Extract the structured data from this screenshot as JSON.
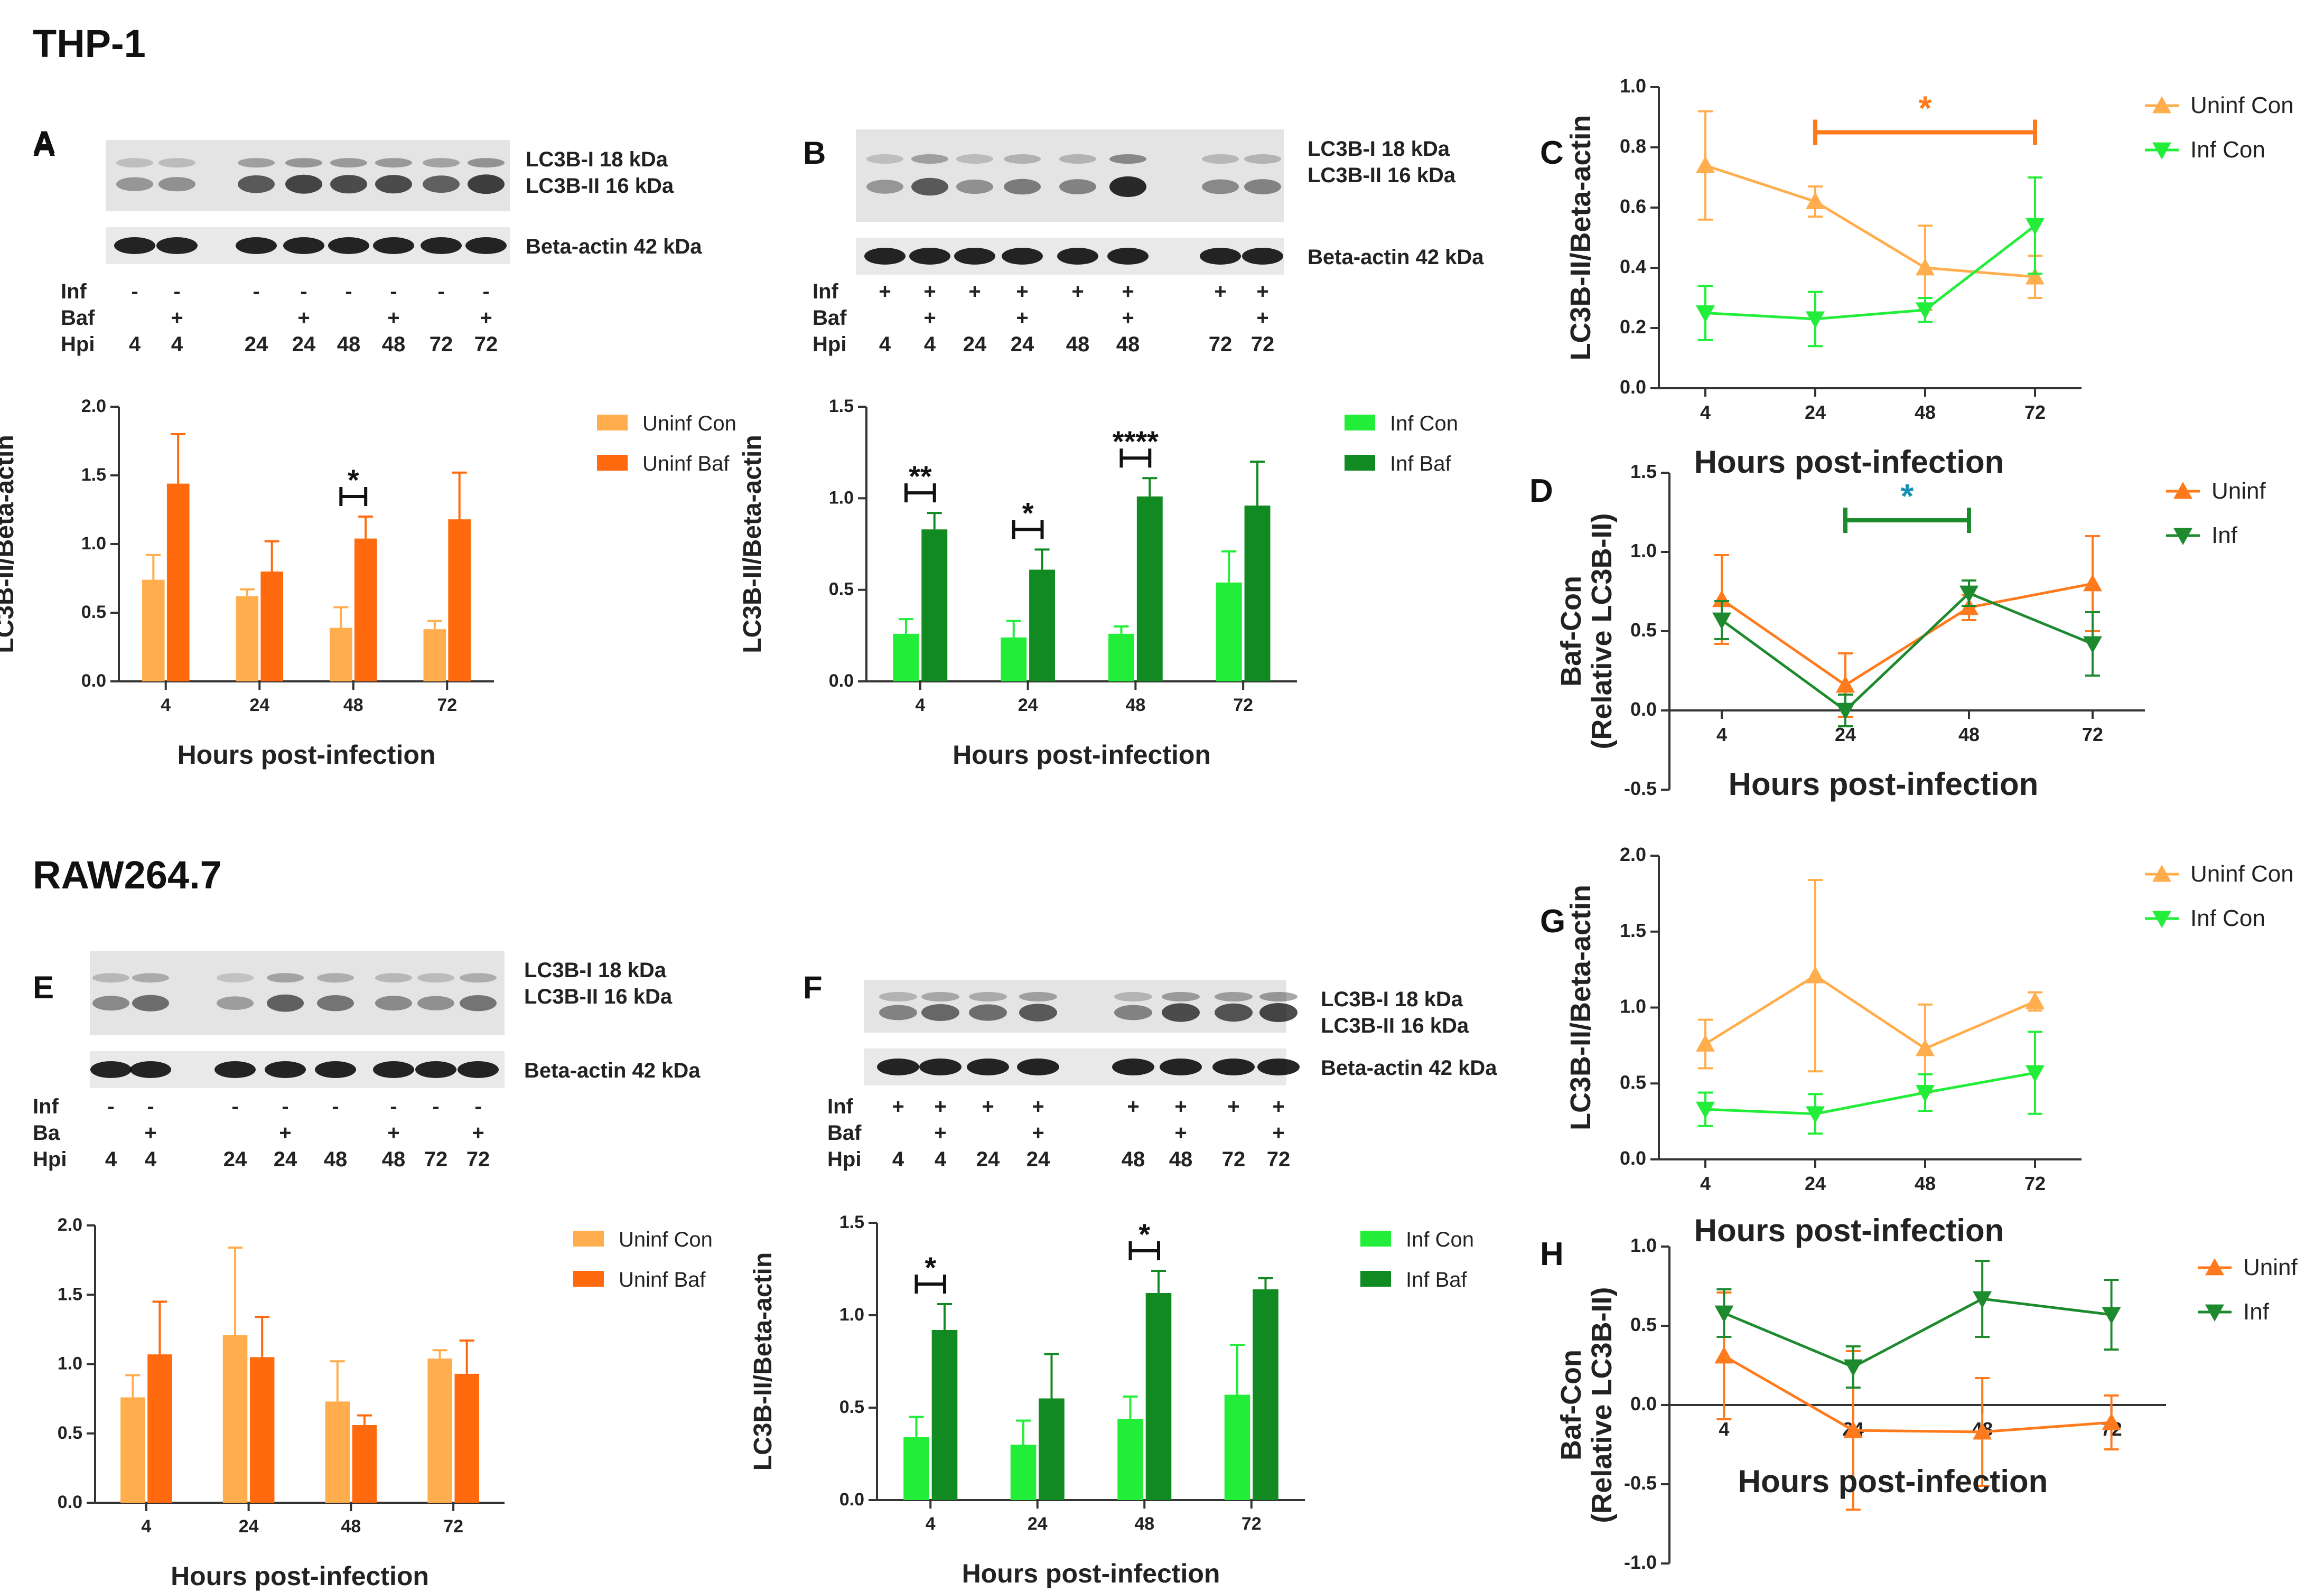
{
  "headings": {
    "thp1": "THP-1",
    "raw": "RAW264.7"
  },
  "axis_labels": {
    "lc3b_beta": "LC3B-II/Beta-actin",
    "hours": "Hours post-infection",
    "baf_con": "Baf-Con",
    "relative": "(Relative LC3B-II)"
  },
  "blots": {
    "A": {
      "panel": "A",
      "band_labels": [
        "LC3B-I 18 kDa",
        "LC3B-II 16 kDa",
        "Beta-actin 42 kDa"
      ],
      "row_labels": [
        "Inf",
        "Baf",
        "Hpi"
      ],
      "lanes": [
        [
          "-",
          "",
          "4"
        ],
        [
          "-",
          "+",
          "4"
        ],
        [
          "-",
          "",
          "24"
        ],
        [
          "-",
          "+",
          "24"
        ],
        [
          "-",
          "",
          "48"
        ],
        [
          "-",
          "+",
          "48"
        ],
        [
          "-",
          "",
          "72"
        ],
        [
          "-",
          "+",
          "72"
        ]
      ]
    },
    "B": {
      "panel": "B",
      "band_labels": [
        "LC3B-I 18 kDa",
        "LC3B-II 16 kDa",
        "Beta-actin 42 kDa"
      ],
      "row_labels": [
        "Inf",
        "Baf",
        "Hpi"
      ],
      "lanes": [
        [
          "+",
          "",
          "4"
        ],
        [
          "+",
          "+",
          "4"
        ],
        [
          "+",
          "",
          "24"
        ],
        [
          "+",
          "+",
          "24"
        ],
        [
          "+",
          "",
          "48"
        ],
        [
          "+",
          "+",
          "48"
        ],
        [
          "+",
          "",
          "72"
        ],
        [
          "+",
          "+",
          "72"
        ]
      ]
    },
    "E": {
      "panel": "E",
      "band_labels": [
        "LC3B-I 18 kDa",
        "LC3B-II 16 kDa",
        "Beta-actin 42 kDa"
      ],
      "row_labels": [
        "Inf",
        "Ba",
        "Hpi"
      ],
      "lanes": [
        [
          "-",
          "",
          "4"
        ],
        [
          "-",
          "+",
          "4"
        ],
        [
          "-",
          "",
          "24"
        ],
        [
          "-",
          "+",
          "24"
        ],
        [
          "-",
          "",
          "48"
        ],
        [
          "-",
          "+",
          "48"
        ],
        [
          "-",
          "",
          "72"
        ],
        [
          "-",
          "+",
          "72"
        ]
      ]
    },
    "F": {
      "panel": "F",
      "band_labels": [
        "LC3B-I 18 kDa",
        "LC3B-II 16 kDa",
        "Beta-actin 42 kDa"
      ],
      "row_labels": [
        "Inf",
        "Baf",
        "Hpi"
      ],
      "lanes": [
        [
          "+",
          "",
          "4"
        ],
        [
          "+",
          "+",
          "4"
        ],
        [
          "+",
          "",
          "24"
        ],
        [
          "+",
          "+",
          "24"
        ],
        [
          "+",
          "",
          "48"
        ],
        [
          "+",
          "+",
          "48"
        ],
        [
          "+",
          "",
          "72"
        ],
        [
          "+",
          "+",
          "72"
        ]
      ]
    }
  },
  "colors": {
    "uninf_con": "#FFAD4D",
    "uninf_baf": "#FF6A0E",
    "inf_con": "#22EE3A",
    "inf_baf": "#128A22",
    "uninf_line": "#FF7A1C",
    "inf_line": "#1E8A2E",
    "sig_cyan": "#1591B6"
  },
  "chart_data": [
    {
      "id": "A",
      "panel": "A",
      "type": "bar",
      "categories": [
        "4",
        "24",
        "48",
        "72"
      ],
      "series": [
        {
          "name": "Uninf Con",
          "color": "#FFAD4D",
          "values": [
            0.74,
            0.62,
            0.39,
            0.38
          ],
          "errors": [
            0.18,
            0.05,
            0.15,
            0.06
          ]
        },
        {
          "name": "Uninf Baf",
          "color": "#FF6A0E",
          "values": [
            1.44,
            0.8,
            1.04,
            1.18
          ],
          "errors": [
            0.36,
            0.22,
            0.16,
            0.34
          ]
        }
      ],
      "ylim": [
        0,
        2
      ],
      "yticks": [
        "0.0",
        "0.5",
        "1.0",
        "1.5",
        "2.0"
      ],
      "significance": [
        {
          "category": "48",
          "label": "*"
        }
      ]
    },
    {
      "id": "B",
      "panel": "",
      "type": "bar",
      "categories": [
        "4",
        "24",
        "48",
        "72"
      ],
      "series": [
        {
          "name": "Inf Con",
          "color": "#22EE3A",
          "values": [
            0.26,
            0.24,
            0.26,
            0.54
          ],
          "errors": [
            0.08,
            0.09,
            0.04,
            0.17
          ]
        },
        {
          "name": "Inf Baf",
          "color": "#128A22",
          "values": [
            0.83,
            0.61,
            1.01,
            0.96
          ],
          "errors": [
            0.09,
            0.11,
            0.1,
            0.24
          ]
        }
      ],
      "ylim": [
        0,
        1.5
      ],
      "yticks": [
        "0.0",
        "0.5",
        "1.0",
        "1.5"
      ],
      "significance": [
        {
          "category": "4",
          "label": "**"
        },
        {
          "category": "24",
          "label": "*"
        },
        {
          "category": "48",
          "label": "****"
        }
      ]
    },
    {
      "id": "C",
      "panel": "C",
      "type": "line",
      "categories": [
        "4",
        "24",
        "48",
        "72"
      ],
      "series": [
        {
          "name": "Uninf Con",
          "color": "#FFAD4D",
          "marker": "up",
          "values": [
            0.74,
            0.62,
            0.4,
            0.37
          ],
          "errors": [
            0.18,
            0.05,
            0.14,
            0.07
          ]
        },
        {
          "name": "Inf Con",
          "color": "#22EE3A",
          "marker": "down",
          "values": [
            0.25,
            0.23,
            0.26,
            0.54
          ],
          "errors": [
            0.09,
            0.09,
            0.04,
            0.16
          ]
        }
      ],
      "ylim": [
        0,
        1
      ],
      "yticks": [
        "0.0",
        "0.2",
        "0.4",
        "0.6",
        "0.8",
        "1.0"
      ],
      "significance": [
        {
          "from": "24",
          "to": "72",
          "label": "*",
          "color": "#FF7A1C"
        }
      ]
    },
    {
      "id": "D",
      "panel": "D",
      "type": "line",
      "categories": [
        "4",
        "24",
        "48",
        "72"
      ],
      "series": [
        {
          "name": "Uninf",
          "color": "#FF7A1C",
          "marker": "up",
          "values": [
            0.7,
            0.16,
            0.65,
            0.8
          ],
          "errors": [
            0.28,
            0.2,
            0.08,
            0.3
          ]
        },
        {
          "name": "Inf",
          "color": "#1E8A2E",
          "marker": "down",
          "values": [
            0.57,
            0.0,
            0.74,
            0.42
          ],
          "errors": [
            0.12,
            0.1,
            0.08,
            0.2
          ]
        }
      ],
      "ylim": [
        -0.5,
        1.5
      ],
      "yticks": [
        "-0.5",
        "0.0",
        "0.5",
        "1.0",
        "1.5"
      ],
      "significance": [
        {
          "from": "24",
          "to": "48",
          "label": "*",
          "color": "#1E8A2E",
          "label_color": "#1591B6"
        }
      ]
    },
    {
      "id": "E",
      "panel": "",
      "type": "bar",
      "categories": [
        "4",
        "24",
        "48",
        "72"
      ],
      "series": [
        {
          "name": "Uninf Con",
          "color": "#FFAD4D",
          "values": [
            0.76,
            1.21,
            0.73,
            1.04
          ],
          "errors": [
            0.16,
            0.63,
            0.29,
            0.06
          ]
        },
        {
          "name": "Uninf Baf",
          "color": "#FF6A0E",
          "values": [
            1.07,
            1.05,
            0.56,
            0.93
          ],
          "errors": [
            0.38,
            0.29,
            0.07,
            0.24
          ]
        }
      ],
      "ylim": [
        0,
        2
      ],
      "yticks": [
        "0.0",
        "0.5",
        "1.0",
        "1.5",
        "2.0"
      ],
      "significance": []
    },
    {
      "id": "F",
      "panel": "",
      "type": "bar",
      "categories": [
        "4",
        "24",
        "48",
        "72"
      ],
      "series": [
        {
          "name": "Inf Con",
          "color": "#22EE3A",
          "values": [
            0.34,
            0.3,
            0.44,
            0.57
          ],
          "errors": [
            0.11,
            0.13,
            0.12,
            0.27
          ]
        },
        {
          "name": "Inf Baf",
          "color": "#128A22",
          "values": [
            0.92,
            0.55,
            1.12,
            1.14
          ],
          "errors": [
            0.14,
            0.24,
            0.12,
            0.06
          ]
        }
      ],
      "ylim": [
        0,
        1.5
      ],
      "yticks": [
        "0.0",
        "0.5",
        "1.0",
        "1.5"
      ],
      "significance": [
        {
          "category": "4",
          "label": "*"
        },
        {
          "category": "48",
          "label": "*"
        }
      ]
    },
    {
      "id": "G",
      "panel": "G",
      "type": "line",
      "categories": [
        "4",
        "24",
        "48",
        "72"
      ],
      "series": [
        {
          "name": "Uninf Con",
          "color": "#FFAD4D",
          "marker": "up",
          "values": [
            0.76,
            1.21,
            0.73,
            1.04
          ],
          "errors": [
            0.16,
            0.63,
            0.29,
            0.06
          ]
        },
        {
          "name": "Inf Con",
          "color": "#22EE3A",
          "marker": "down",
          "values": [
            0.33,
            0.3,
            0.44,
            0.57
          ],
          "errors": [
            0.11,
            0.13,
            0.12,
            0.27
          ]
        }
      ],
      "ylim": [
        0,
        2
      ],
      "yticks": [
        "0.0",
        "0.5",
        "1.0",
        "1.5",
        "2.0"
      ],
      "significance": []
    },
    {
      "id": "H",
      "panel": "H",
      "type": "line",
      "categories": [
        "4",
        "24",
        "48",
        "72"
      ],
      "series": [
        {
          "name": "Uninf",
          "color": "#FF7A1C",
          "marker": "up",
          "values": [
            0.31,
            -0.16,
            -0.17,
            -0.11
          ],
          "errors": [
            0.4,
            0.5,
            0.34,
            0.17
          ]
        },
        {
          "name": "Inf",
          "color": "#1E8A2E",
          "marker": "down",
          "values": [
            0.58,
            0.24,
            0.67,
            0.57
          ],
          "errors": [
            0.15,
            0.13,
            0.24,
            0.22
          ]
        }
      ],
      "ylim": [
        -1,
        1
      ],
      "yticks": [
        "-1.0",
        "-0.5",
        "0.0",
        "0.5",
        "1.0"
      ],
      "significance": []
    }
  ]
}
